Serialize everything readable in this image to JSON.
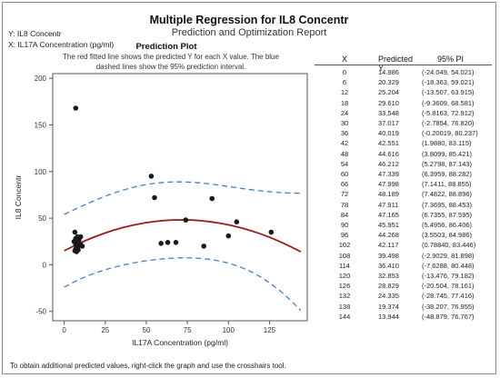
{
  "report": {
    "title": "Multiple Regression for IL8 Concentr",
    "subtitle": "Prediction and Optimization Report",
    "response_label": "Y: IL8 Concentr",
    "predictor_label": "X: IL17A Concentration (pg/ml)",
    "footer": "To obtain additional predicted values, right-click the graph and use the crosshairs tool."
  },
  "plot": {
    "title": "Prediction Plot",
    "description_line1": "The red fitted line shows the predicted Y for each X value. The blue",
    "description_line2": "dashed lines show the 95% prediction interval.",
    "colors": {
      "fit": "#9b1c1c",
      "pi": "#4a7fc1",
      "points": "#1a1a1a"
    }
  },
  "table": {
    "headers": {
      "x": "X",
      "y": "Predicted Y",
      "pi": "95% PI"
    },
    "rows": [
      {
        "x": "0",
        "y": "14.986",
        "pi": "(-24.049, 54.021)"
      },
      {
        "x": "6",
        "y": "20.329",
        "pi": "(-18.363, 59.021)"
      },
      {
        "x": "12",
        "y": "25.204",
        "pi": "(-13.507, 63.915)"
      },
      {
        "x": "18",
        "y": "29.610",
        "pi": "(-9.3609, 68.581)"
      },
      {
        "x": "24",
        "y": "33.548",
        "pi": "(-5.8163, 72.912)"
      },
      {
        "x": "30",
        "y": "37.017",
        "pi": "(-2.7854, 76.820)"
      },
      {
        "x": "36",
        "y": "40.019",
        "pi": "(-0.20019, 80.237)"
      },
      {
        "x": "42",
        "y": "42.551",
        "pi": "(1.9880, 83.115)"
      },
      {
        "x": "48",
        "y": "44.616",
        "pi": "(3.8099, 85.421)"
      },
      {
        "x": "54",
        "y": "46.212",
        "pi": "(5.2798, 87.143)"
      },
      {
        "x": "60",
        "y": "47.339",
        "pi": "(6.3959, 88.282)"
      },
      {
        "x": "66",
        "y": "47.998",
        "pi": "(7.1411, 88.855)"
      },
      {
        "x": "72",
        "y": "48.189",
        "pi": "(7.4822, 88.896)"
      },
      {
        "x": "78",
        "y": "47.911",
        "pi": "(7.3695, 88.453)"
      },
      {
        "x": "84",
        "y": "47.165",
        "pi": "(6.7355, 87.595)"
      },
      {
        "x": "90",
        "y": "45.951",
        "pi": "(5.4956, 86.406)"
      },
      {
        "x": "96",
        "y": "44.268",
        "pi": "(3.5503, 84.986)"
      },
      {
        "x": "102",
        "y": "42.117",
        "pi": "(0.78840, 83.446)"
      },
      {
        "x": "108",
        "y": "39.498",
        "pi": "(-2.9029, 81.898)"
      },
      {
        "x": "114",
        "y": "36.410",
        "pi": "(-7.6288, 80.448)"
      },
      {
        "x": "120",
        "y": "32.853",
        "pi": "(-13.476, 79.182)"
      },
      {
        "x": "126",
        "y": "28.829",
        "pi": "(-20.504, 78.161)"
      },
      {
        "x": "132",
        "y": "24.335",
        "pi": "(-28.745, 77.416)"
      },
      {
        "x": "138",
        "y": "19.374",
        "pi": "(-38.207, 76.955)"
      },
      {
        "x": "144",
        "y": "13.944",
        "pi": "(-48.879, 76.767)"
      }
    ]
  },
  "chart_data": {
    "type": "scatter",
    "title": "",
    "xlabel": "IL17A Concentration (pg/ml)",
    "ylabel": "IL8 Concentr",
    "xlim": [
      -7,
      148
    ],
    "ylim": [
      -60,
      205
    ],
    "x_ticks": [
      0,
      25,
      50,
      75,
      100,
      125,
      150
    ],
    "y_ticks": [
      -50,
      0,
      50,
      100,
      150,
      200
    ],
    "grid": false,
    "legend": "none",
    "points": [
      [
        7,
        168
      ],
      [
        6.5,
        15
      ],
      [
        7,
        17
      ],
      [
        7.5,
        20
      ],
      [
        7,
        22
      ],
      [
        8,
        18
      ],
      [
        6,
        25
      ],
      [
        9,
        21
      ],
      [
        10,
        30
      ],
      [
        9,
        27
      ],
      [
        8,
        24
      ],
      [
        6.5,
        35
      ],
      [
        7.5,
        14
      ],
      [
        8.5,
        16
      ],
      [
        10,
        22
      ],
      [
        11,
        20
      ],
      [
        7,
        28
      ],
      [
        8,
        30
      ],
      [
        53,
        95
      ],
      [
        55,
        72
      ],
      [
        59,
        23
      ],
      [
        63,
        24
      ],
      [
        68,
        24
      ],
      [
        74,
        48
      ],
      [
        85,
        20
      ],
      [
        90,
        71
      ],
      [
        100,
        31
      ],
      [
        105,
        46
      ],
      [
        126,
        35
      ]
    ],
    "fit": {
      "x": [
        0,
        6,
        12,
        18,
        24,
        30,
        36,
        42,
        48,
        54,
        60,
        66,
        72,
        78,
        84,
        90,
        96,
        102,
        108,
        114,
        120,
        126,
        132,
        138,
        144
      ],
      "y": [
        14.986,
        20.329,
        25.204,
        29.61,
        33.548,
        37.017,
        40.019,
        42.551,
        44.616,
        46.212,
        47.339,
        47.998,
        48.189,
        47.911,
        47.165,
        45.951,
        44.268,
        42.117,
        39.498,
        36.41,
        32.853,
        28.829,
        24.335,
        19.374,
        13.944
      ],
      "lower": [
        -24.049,
        -18.363,
        -13.507,
        -9.3609,
        -5.8163,
        -2.7854,
        -0.20019,
        1.988,
        3.8099,
        5.2798,
        6.3959,
        7.1411,
        7.4822,
        7.3695,
        6.7355,
        5.4956,
        3.5503,
        0.7884,
        -2.9029,
        -7.6288,
        -13.476,
        -20.504,
        -28.745,
        -38.207,
        -48.879
      ],
      "upper": [
        54.021,
        59.021,
        63.915,
        68.581,
        72.912,
        76.82,
        80.237,
        83.115,
        85.421,
        87.143,
        88.282,
        88.855,
        88.896,
        88.453,
        87.595,
        86.406,
        84.986,
        83.446,
        81.898,
        80.448,
        79.182,
        78.161,
        77.416,
        76.955,
        76.767
      ]
    }
  }
}
